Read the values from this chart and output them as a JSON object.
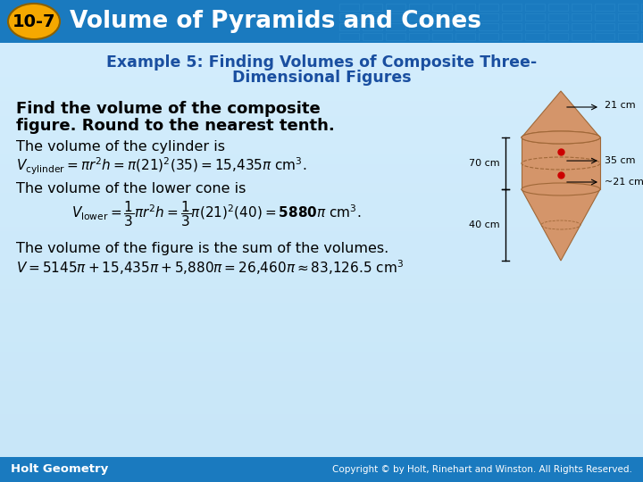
{
  "header_bg_color": "#1a7abf",
  "header_text": "Volume of Pyramids and Cones",
  "badge_text": "10-7",
  "badge_bg": "#f5a800",
  "badge_text_color": "#000000",
  "body_bg_color": "#ddeeff",
  "body_bg_top": "#c8e4f8",
  "body_bg_bot": "#e8f4ff",
  "example_title_color": "#1a4fa0",
  "footer_bg": "#1a7abf",
  "footer_left": "Holt Geometry",
  "footer_right": "Copyright © by Holt, Rinehart and Winston. All Rights Reserved.",
  "footer_text_color": "#ffffff",
  "header_grid_color": "#2a8ace",
  "cone_color": "#d4956a",
  "cone_light": "#e8b898",
  "cone_dark": "#a06838"
}
